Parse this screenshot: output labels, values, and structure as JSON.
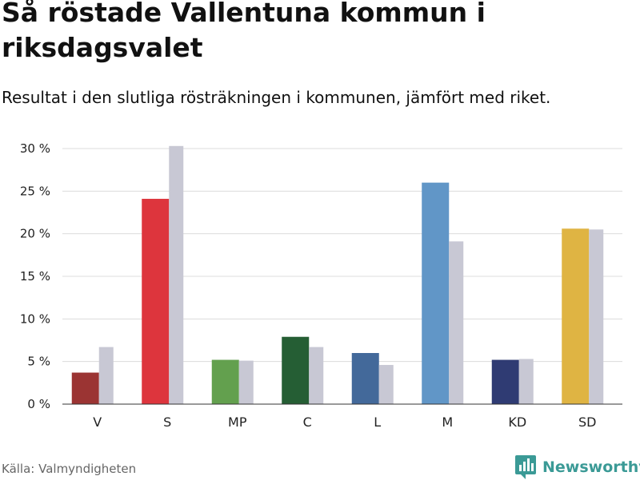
{
  "header": {
    "title": "Så röstade Vallentuna kommun i riksdagsvalet",
    "subtitle": "Resultat i den slutliga rösträkningen i kommunen, jämfört med riket."
  },
  "footer": {
    "source": "Källa: Valmyndigheten",
    "brand": "Newsworthy",
    "brand_icon": "newsworthy-logo-icon",
    "brand_color": "#3b9a96"
  },
  "chart_data": {
    "type": "bar",
    "title": "Så röstade Vallentuna kommun i riksdagsvalet",
    "subtitle": "Resultat i den slutliga rösträkningen i kommunen, jämfört med riket.",
    "xlabel": "",
    "ylabel": "",
    "ylim": [
      0,
      30
    ],
    "yticks": [
      0,
      5,
      10,
      15,
      20,
      25,
      30
    ],
    "ytick_labels": [
      "0 %",
      "5 %",
      "10 %",
      "15 %",
      "20 %",
      "25 %",
      "30 %"
    ],
    "grid": true,
    "categories": [
      "V",
      "S",
      "MP",
      "C",
      "L",
      "M",
      "KD",
      "SD"
    ],
    "series": [
      {
        "name": "Vallentuna kommun",
        "values": [
          3.7,
          24.1,
          5.2,
          7.9,
          6.0,
          26.0,
          5.2,
          20.6
        ],
        "colors": [
          "#9b3433",
          "#dd353d",
          "#63a04e",
          "#255e34",
          "#43699a",
          "#6196c7",
          "#2f3b73",
          "#dfb443"
        ]
      },
      {
        "name": "Riket",
        "values": [
          6.7,
          30.3,
          5.1,
          6.7,
          4.6,
          19.1,
          5.3,
          20.5
        ],
        "color": "#c8c8d4"
      }
    ],
    "source": "Källa: Valmyndigheten"
  }
}
